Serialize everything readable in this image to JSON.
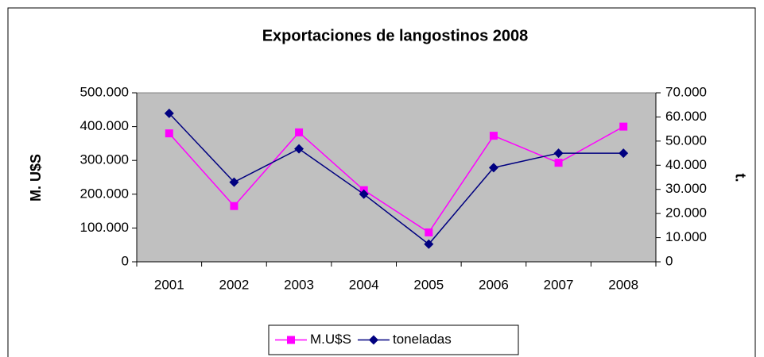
{
  "chart_data": {
    "type": "line",
    "title": "Exportaciones de langostinos 2008",
    "y_label": "M. U$S",
    "y2_label": "t.",
    "categories": [
      "2001",
      "2002",
      "2003",
      "2004",
      "2005",
      "2006",
      "2007",
      "2008"
    ],
    "series": [
      {
        "name": "M.U$S",
        "color": "#ff00ff",
        "marker": "square",
        "values": [
          380000,
          165000,
          383000,
          212000,
          87000,
          373000,
          293000,
          400000
        ]
      },
      {
        "name": "toneladas",
        "color": "#000080",
        "marker": "diamond",
        "axis": "y2",
        "values": [
          61500,
          33000,
          46800,
          28000,
          7300,
          39000,
          45000,
          45000
        ]
      }
    ],
    "ylim": [
      0,
      500000
    ],
    "yticks": [
      0,
      {
        "value": 100000,
        "label": "100.000"
      },
      {
        "value": 200000,
        "label": "200.000"
      },
      {
        "value": 300000,
        "label": "300.000"
      },
      {
        "value": 400000,
        "label": "400.000"
      },
      {
        "value": 500000,
        "label": "500.000"
      }
    ],
    "y2lim": [
      0,
      70000
    ],
    "y2ticks": [
      0,
      {
        "value": 10000,
        "label": "10.000"
      },
      {
        "value": 20000,
        "label": "20.000"
      },
      {
        "value": 30000,
        "label": "30.000"
      },
      {
        "value": 40000,
        "label": "40.000"
      },
      {
        "value": 50000,
        "label": "50.000"
      },
      {
        "value": 60000,
        "label": "60.000"
      },
      {
        "value": 70000,
        "label": "70.000"
      }
    ],
    "legend": "bottom",
    "plot_background": "#c0c0c0"
  }
}
